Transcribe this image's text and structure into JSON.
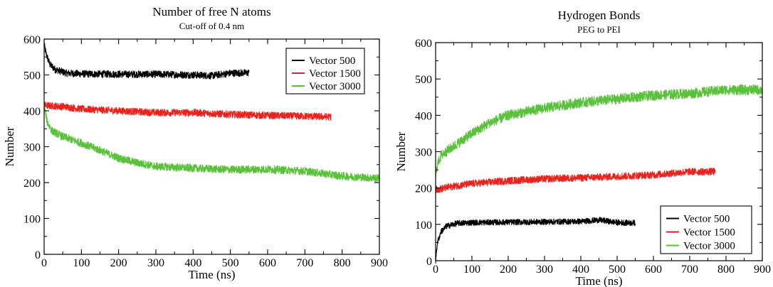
{
  "chart_data": [
    {
      "type": "line",
      "title": "Number of free N atoms",
      "subtitle": "Cut-off of 0.4 nm",
      "xlabel": "Time (ns)",
      "ylabel": "Number",
      "xlim": [
        0,
        900
      ],
      "ylim": [
        0,
        600
      ],
      "xticks": [
        0,
        100,
        200,
        300,
        400,
        500,
        600,
        700,
        800,
        900
      ],
      "yticks": [
        0,
        100,
        200,
        300,
        400,
        500,
        600
      ],
      "legend_position": "top-right",
      "grid": false,
      "series": [
        {
          "name": "Vector 500",
          "color": "#000000",
          "noise": 10,
          "points": [
            [
              0,
              585
            ],
            [
              5,
              560
            ],
            [
              15,
              530
            ],
            [
              30,
              515
            ],
            [
              60,
              505
            ],
            [
              100,
              503
            ],
            [
              200,
              502
            ],
            [
              300,
              502
            ],
            [
              400,
              500
            ],
            [
              450,
              498
            ],
            [
              500,
              505
            ],
            [
              550,
              506
            ]
          ]
        },
        {
          "name": "Vector 1500",
          "color": "#e8221c",
          "noise": 10,
          "points": [
            [
              0,
              415
            ],
            [
              50,
              412
            ],
            [
              100,
              405
            ],
            [
              200,
              400
            ],
            [
              300,
              395
            ],
            [
              400,
              395
            ],
            [
              500,
              390
            ],
            [
              600,
              387
            ],
            [
              700,
              385
            ],
            [
              770,
              383
            ]
          ]
        },
        {
          "name": "Vector 3000",
          "color": "#5ac13b",
          "noise": 11,
          "points": [
            [
              0,
              415
            ],
            [
              8,
              370
            ],
            [
              20,
              345
            ],
            [
              50,
              328
            ],
            [
              100,
              310
            ],
            [
              150,
              290
            ],
            [
              200,
              268
            ],
            [
              250,
              255
            ],
            [
              300,
              245
            ],
            [
              400,
              240
            ],
            [
              500,
              236
            ],
            [
              600,
              237
            ],
            [
              700,
              232
            ],
            [
              800,
              218
            ],
            [
              900,
              212
            ]
          ]
        }
      ]
    },
    {
      "type": "line",
      "title": "Hydrogen Bonds",
      "subtitle": "PEG to PEI",
      "xlabel": "Time (ns)",
      "ylabel": "Number",
      "xlim": [
        0,
        900
      ],
      "ylim": [
        0,
        600
      ],
      "xticks": [
        0,
        100,
        200,
        300,
        400,
        500,
        600,
        700,
        800,
        900
      ],
      "yticks": [
        0,
        100,
        200,
        300,
        400,
        500,
        600
      ],
      "legend_position": "bottom-right",
      "grid": false,
      "series": [
        {
          "name": "Vector 500",
          "color": "#000000",
          "noise": 8,
          "points": [
            [
              0,
              0
            ],
            [
              5,
              50
            ],
            [
              15,
              80
            ],
            [
              30,
              95
            ],
            [
              60,
              103
            ],
            [
              100,
              105
            ],
            [
              200,
              106
            ],
            [
              300,
              107
            ],
            [
              400,
              108
            ],
            [
              450,
              112
            ],
            [
              500,
              105
            ],
            [
              550,
              104
            ]
          ]
        },
        {
          "name": "Vector 1500",
          "color": "#e8221c",
          "noise": 10,
          "points": [
            [
              0,
              195
            ],
            [
              50,
              205
            ],
            [
              100,
              212
            ],
            [
              200,
              220
            ],
            [
              300,
              225
            ],
            [
              400,
              228
            ],
            [
              500,
              232
            ],
            [
              600,
              236
            ],
            [
              700,
              245
            ],
            [
              770,
              245
            ]
          ]
        },
        {
          "name": "Vector 3000",
          "color": "#5ac13b",
          "noise": 14,
          "points": [
            [
              0,
              230
            ],
            [
              5,
              265
            ],
            [
              15,
              290
            ],
            [
              50,
              315
            ],
            [
              100,
              350
            ],
            [
              150,
              380
            ],
            [
              200,
              400
            ],
            [
              300,
              420
            ],
            [
              400,
              435
            ],
            [
              500,
              445
            ],
            [
              600,
              455
            ],
            [
              700,
              460
            ],
            [
              800,
              470
            ],
            [
              900,
              470
            ]
          ]
        }
      ]
    }
  ]
}
